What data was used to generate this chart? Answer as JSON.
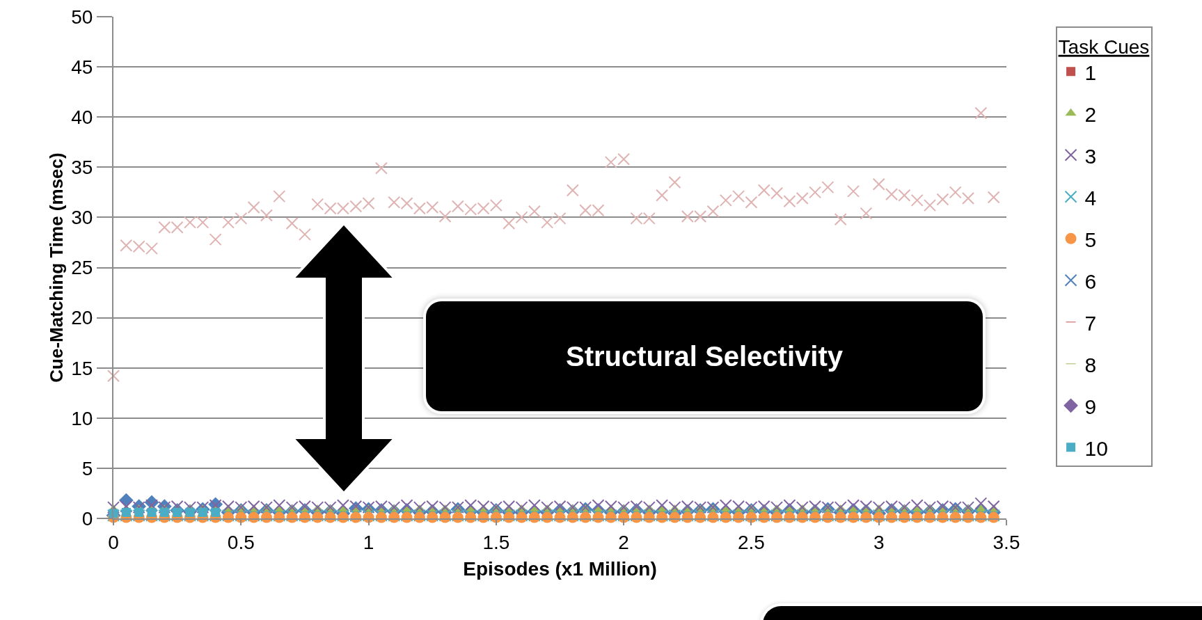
{
  "chart_data": {
    "type": "scatter",
    "xlabel": "Episodes (x1 Million)",
    "ylabel": "Cue-Matching Time (msec)",
    "legend_title": "Task Cues",
    "legend": "right",
    "grid": "y",
    "xlim": [
      0,
      3.5
    ],
    "xticks": [
      0,
      0.5,
      1,
      1.5,
      2,
      2.5,
      3,
      3.5
    ],
    "ylim": [
      0,
      50
    ],
    "yticks": [
      0,
      5,
      10,
      15,
      20,
      25,
      30,
      35,
      40,
      45,
      50
    ],
    "annotations": [
      "Structural Selectivity"
    ],
    "x": [
      0,
      0.05,
      0.1,
      0.15,
      0.2,
      0.25,
      0.3,
      0.35,
      0.4,
      0.45,
      0.5,
      0.55,
      0.6,
      0.65,
      0.7,
      0.75,
      0.8,
      0.85,
      0.9,
      0.95,
      1,
      1.05,
      1.1,
      1.15,
      1.2,
      1.25,
      1.3,
      1.35,
      1.4,
      1.45,
      1.5,
      1.55,
      1.6,
      1.65,
      1.7,
      1.75,
      1.8,
      1.85,
      1.9,
      1.95,
      2,
      2.05,
      2.1,
      2.15,
      2.2,
      2.25,
      2.3,
      2.35,
      2.4,
      2.45,
      2.5,
      2.55,
      2.6,
      2.65,
      2.7,
      2.75,
      2.8,
      2.85,
      2.9,
      2.95,
      3,
      3.05,
      3.1,
      3.15,
      3.2,
      3.25,
      3.3,
      3.35,
      3.4,
      3.45
    ],
    "series": [
      {
        "name": "1",
        "color": "#c0504d",
        "marker": "square",
        "values": [
          null,
          null,
          null,
          null,
          null,
          null,
          null,
          null,
          null,
          null,
          null,
          null,
          null,
          null,
          null,
          null,
          null,
          null,
          null,
          null,
          null,
          null,
          null,
          null,
          null,
          null,
          null,
          null,
          null,
          null,
          null,
          null,
          null,
          null,
          null,
          null,
          null,
          null,
          null,
          null,
          null,
          null,
          null,
          null,
          null,
          null,
          null,
          null,
          null,
          null,
          null,
          null,
          null,
          null,
          null,
          null,
          null,
          null,
          null,
          null,
          null,
          null,
          null,
          null,
          null,
          null,
          null,
          null,
          null,
          null
        ]
      },
      {
        "name": "2",
        "color": "#9bbb59",
        "marker": "triangle",
        "values": [
          0.9,
          0.9,
          0.9,
          0.9,
          0.9,
          0.9,
          0.9,
          0.9,
          0.9,
          0.9,
          0.9,
          0.9,
          0.9,
          0.9,
          0.9,
          0.9,
          0.9,
          0.9,
          0.9,
          0.9,
          0.9,
          0.9,
          0.9,
          0.9,
          0.9,
          0.9,
          0.9,
          0.9,
          0.9,
          0.9,
          0.9,
          0.9,
          0.9,
          0.9,
          0.9,
          0.9,
          0.9,
          0.9,
          0.9,
          0.9,
          0.9,
          0.9,
          0.9,
          0.9,
          0.9,
          0.9,
          0.9,
          0.9,
          0.9,
          0.9,
          0.9,
          0.9,
          0.9,
          0.9,
          0.9,
          0.9,
          0.9,
          0.9,
          0.9,
          0.9,
          0.9,
          0.9,
          0.9,
          0.9,
          0.9,
          0.9,
          0.9,
          0.9,
          0.9,
          0.9
        ]
      },
      {
        "name": "3",
        "color": "#8064a2",
        "marker": "cross",
        "values": [
          1.1,
          1.2,
          1.1,
          1.3,
          1.1,
          1.2,
          1.1,
          1.1,
          1.3,
          1.2,
          1.1,
          1.2,
          1.1,
          1.3,
          1.1,
          1.2,
          1.1,
          1.1,
          1.3,
          1.2,
          1.1,
          1.2,
          1.1,
          1.3,
          1.1,
          1.2,
          1.1,
          1.1,
          1.3,
          1.2,
          1.1,
          1.2,
          1.1,
          1.3,
          1.1,
          1.2,
          1.1,
          1.1,
          1.3,
          1.2,
          1.1,
          1.2,
          1.1,
          1.3,
          1.1,
          1.2,
          1.1,
          1.1,
          1.3,
          1.2,
          1.1,
          1.2,
          1.1,
          1.3,
          1.1,
          1.2,
          1.1,
          1.1,
          1.3,
          1.2,
          1.1,
          1.2,
          1.1,
          1.3,
          1.1,
          1.2,
          1.1,
          1.1,
          1.5,
          1.2
        ]
      },
      {
        "name": "4",
        "color": "#4bacc6",
        "marker": "cross",
        "values": [
          0.3,
          0.3,
          0.3,
          0.3,
          0.3,
          0.3,
          0.3,
          0.3,
          0.3,
          0.3,
          0.3,
          0.3,
          0.3,
          0.3,
          0.3,
          0.3,
          0.3,
          0.3,
          0.3,
          0.3,
          0.3,
          0.3,
          0.3,
          0.3,
          0.3,
          0.3,
          0.3,
          0.3,
          0.3,
          0.3,
          0.3,
          0.3,
          0.3,
          0.3,
          0.3,
          0.3,
          0.3,
          0.3,
          0.3,
          0.3,
          0.3,
          0.3,
          0.3,
          0.3,
          0.3,
          0.3,
          0.3,
          0.3,
          0.3,
          0.3,
          0.3,
          0.3,
          0.3,
          0.3,
          0.3,
          0.3,
          0.3,
          0.3,
          0.3,
          0.3,
          0.3,
          0.3,
          0.3,
          0.3,
          0.3,
          0.3,
          0.3,
          0.3,
          0.3,
          0.3
        ]
      },
      {
        "name": "5",
        "color": "#f79646",
        "marker": "circle",
        "values": [
          0.1,
          0.1,
          0.1,
          0.1,
          0.1,
          0.1,
          0.1,
          0.1,
          0.1,
          0.1,
          0.1,
          0.1,
          0.1,
          0.1,
          0.1,
          0.1,
          0.1,
          0.1,
          0.1,
          0.1,
          0.1,
          0.1,
          0.1,
          0.1,
          0.1,
          0.1,
          0.1,
          0.1,
          0.1,
          0.1,
          0.1,
          0.1,
          0.1,
          0.1,
          0.1,
          0.1,
          0.1,
          0.1,
          0.1,
          0.1,
          0.1,
          0.1,
          0.1,
          0.1,
          0.1,
          0.1,
          0.1,
          0.1,
          0.1,
          0.1,
          0.1,
          0.1,
          0.1,
          0.1,
          0.1,
          0.1,
          0.1,
          0.1,
          0.1,
          0.1,
          0.1,
          0.1,
          0.1,
          0.1,
          0.1,
          0.1,
          0.1,
          0.1,
          0.1,
          0.1
        ]
      },
      {
        "name": "6",
        "color": "#4f81bd",
        "marker": "cross",
        "values": [
          null,
          null,
          null,
          null,
          null,
          null,
          null,
          null,
          null,
          null,
          null,
          null,
          null,
          null,
          null,
          null,
          null,
          null,
          null,
          null,
          null,
          null,
          null,
          null,
          null,
          null,
          null,
          null,
          null,
          null,
          null,
          null,
          null,
          null,
          null,
          null,
          null,
          null,
          null,
          null,
          null,
          null,
          null,
          null,
          null,
          null,
          null,
          null,
          null,
          null,
          null,
          null,
          null,
          null,
          null,
          null,
          null,
          null,
          null,
          null,
          null,
          null,
          null,
          null,
          null,
          null,
          null,
          null,
          null,
          null
        ]
      },
      {
        "name": "7",
        "color": "#c0504d",
        "values": [
          null,
          null,
          null,
          null,
          null,
          null,
          null,
          null,
          null,
          null,
          null,
          null,
          null,
          null,
          null,
          null,
          null,
          null,
          null,
          null,
          null,
          null,
          null,
          null,
          null,
          null,
          null,
          null,
          null,
          null,
          null,
          null,
          null,
          null,
          null,
          null,
          null,
          null,
          null,
          null,
          null,
          null,
          null,
          null,
          null,
          null,
          null,
          null,
          null,
          null,
          null,
          null,
          null,
          null,
          null,
          null,
          null,
          null,
          null,
          null,
          null,
          null,
          null,
          null,
          null,
          null,
          null,
          null,
          null,
          null
        ]
      },
      {
        "name": "8",
        "color": "#9bbb59",
        "values": [
          null,
          null,
          null,
          null,
          null,
          null,
          null,
          null,
          null,
          null,
          null,
          null,
          null,
          null,
          null,
          null,
          null,
          null,
          null,
          null,
          null,
          null,
          null,
          null,
          null,
          null,
          null,
          null,
          null,
          null,
          null,
          null,
          null,
          null,
          null,
          null,
          null,
          null,
          null,
          null,
          null,
          null,
          null,
          null,
          null,
          null,
          null,
          null,
          null,
          null,
          null,
          null,
          null,
          null,
          null,
          null,
          null,
          null,
          null,
          null,
          null,
          null,
          null,
          null,
          null,
          null,
          null,
          null,
          null,
          null
        ]
      },
      {
        "name": "9",
        "color": "#8064a2",
        "marker": "diamond",
        "values": [
          null,
          null,
          null,
          null,
          null,
          null,
          null,
          null,
          null,
          null,
          null,
          null,
          null,
          null,
          null,
          null,
          null,
          null,
          null,
          null,
          null,
          null,
          null,
          null,
          null,
          null,
          null,
          null,
          null,
          null,
          null,
          null,
          null,
          null,
          null,
          null,
          null,
          null,
          null,
          null,
          null,
          null,
          null,
          null,
          null,
          null,
          null,
          null,
          null,
          null,
          null,
          null,
          null,
          null,
          null,
          null,
          null,
          null,
          null,
          null,
          null,
          null,
          null,
          null,
          null,
          null,
          null,
          null,
          null,
          null
        ]
      },
      {
        "name": "10",
        "color": "#4bacc6",
        "marker": "square",
        "values": [
          0.5,
          0.6,
          0.6,
          0.6,
          0.6,
          0.6,
          0.6,
          0.6,
          0.6,
          null,
          null,
          null,
          null,
          null,
          null,
          null,
          null,
          null,
          null,
          null,
          null,
          null,
          null,
          null,
          null,
          null,
          null,
          null,
          null,
          null,
          null,
          null,
          null,
          null,
          null,
          null,
          null,
          null,
          null,
          null,
          null,
          null,
          null,
          null,
          null,
          null,
          null,
          null,
          null,
          null,
          null,
          null,
          null,
          null,
          null,
          null,
          null,
          null,
          null,
          null,
          null,
          null,
          null,
          null,
          null,
          null,
          null,
          null,
          null,
          null
        ]
      },
      {
        "color": "#dfb3b2",
        "marker": "cross",
        "values": [
          14.2,
          27.2,
          27.1,
          26.9,
          29.0,
          29.0,
          29.5,
          29.5,
          27.8,
          29.5,
          29.9,
          31.0,
          30.2,
          32.1,
          29.4,
          28.3,
          31.3,
          30.9,
          30.9,
          31.1,
          31.4,
          34.9,
          31.5,
          31.4,
          30.9,
          31.0,
          30.1,
          31.1,
          30.8,
          30.9,
          31.2,
          29.4,
          30.0,
          30.6,
          29.5,
          29.9,
          32.7,
          30.7,
          30.7,
          35.5,
          35.8,
          29.9,
          29.9,
          32.2,
          33.5,
          30.1,
          30.1,
          30.6,
          31.7,
          32.1,
          31.5,
          32.7,
          32.4,
          31.6,
          31.9,
          32.5,
          33.0,
          29.8,
          32.6,
          30.4,
          33.3,
          32.3,
          32.2,
          31.7,
          31.2,
          31.8,
          32.5,
          31.9,
          40.4,
          32.0
        ]
      },
      {
        "color": "#4f81bd",
        "marker": "diamond",
        "values": [
          0.3,
          1.8,
          1.2,
          1.6,
          1.2,
          0.8,
          0.7,
          0.9,
          1.4,
          0.6,
          0.8,
          0.6,
          0.8,
          0.6,
          0.7,
          0.8,
          0.6,
          0.7,
          0.5,
          1.0,
          0.9,
          0.8,
          0.7,
          0.8,
          0.6,
          0.7,
          0.6,
          0.9,
          0.7,
          0.6,
          0.8,
          0.6,
          0.6,
          0.7,
          0.6,
          0.8,
          0.7,
          0.9,
          0.8,
          0.6,
          0.7,
          0.8,
          0.6,
          0.7,
          0.5,
          0.7,
          0.8,
          0.9,
          0.7,
          0.6,
          0.8,
          0.7,
          0.6,
          0.8,
          0.6,
          0.7,
          0.9,
          0.6,
          0.8,
          0.7,
          0.5,
          0.8,
          0.7,
          0.6,
          0.7,
          0.8,
          0.9,
          0.7,
          0.8,
          0.6
        ]
      }
    ]
  }
}
